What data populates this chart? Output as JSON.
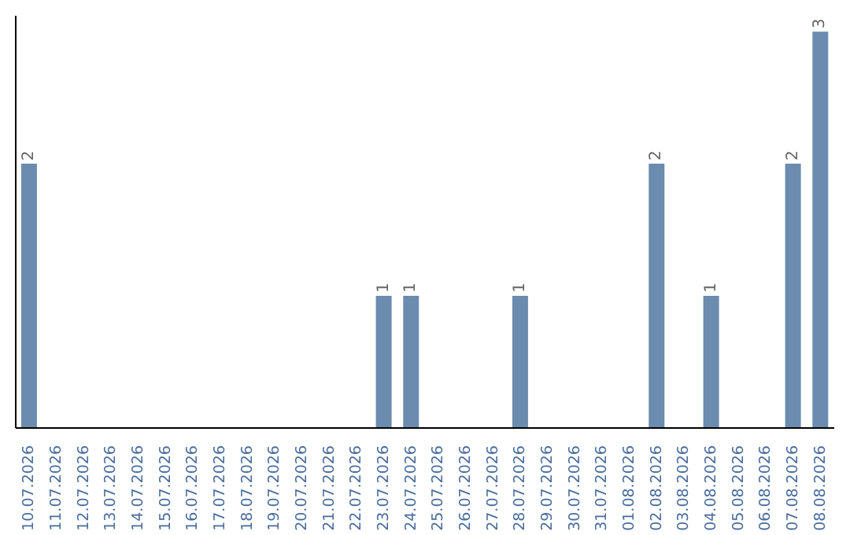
{
  "chart_data": {
    "type": "bar",
    "categories": [
      "10.07.2026",
      "11.07.2026",
      "12.07.2026",
      "13.07.2026",
      "14.07.2026",
      "15.07.2026",
      "16.07.2026",
      "17.07.2026",
      "18.07.2026",
      "19.07.2026",
      "20.07.2026",
      "21.07.2026",
      "22.07.2026",
      "23.07.2026",
      "24.07.2026",
      "25.07.2026",
      "26.07.2026",
      "27.07.2026",
      "28.07.2026",
      "29.07.2026",
      "30.07.2026",
      "31.07.2026",
      "01.08.2026",
      "02.08.2026",
      "03.08.2026",
      "04.08.2026",
      "05.08.2026",
      "06.08.2026",
      "07.08.2026",
      "08.08.2026"
    ],
    "values": [
      2,
      0,
      0,
      0,
      0,
      0,
      0,
      0,
      0,
      0,
      0,
      0,
      0,
      1,
      1,
      0,
      0,
      0,
      1,
      0,
      0,
      0,
      0,
      2,
      0,
      1,
      0,
      0,
      2,
      3
    ],
    "value_labels": [
      "2",
      null,
      null,
      null,
      null,
      null,
      null,
      null,
      null,
      null,
      null,
      null,
      null,
      "1",
      "1",
      null,
      null,
      null,
      "1",
      null,
      null,
      null,
      null,
      "2",
      null,
      "1",
      null,
      null,
      "2",
      "3"
    ],
    "color": "#6b8caf",
    "grid": false,
    "legend": false
  }
}
